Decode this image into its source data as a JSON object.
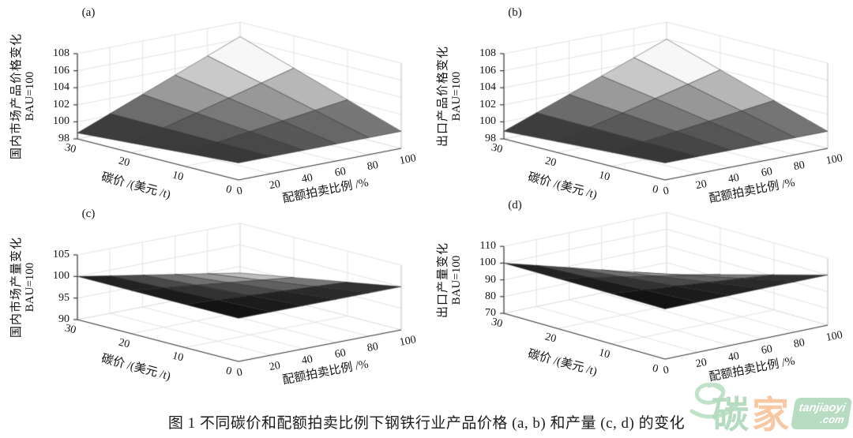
{
  "figure": {
    "caption": "图 1  不同碳价和配额拍卖比例下钢铁行业产品价格 (a, b) 和产量 (c, d) 的变化"
  },
  "watermark": {
    "char_yi": "易",
    "char_tan": "碳",
    "char_jia": "家",
    "badge_line1": "tanjiaoyi",
    "badge_line2": ".com",
    "green": "#b7dcc2",
    "peach": "#f6c9a4",
    "badge_text_color": "#ffffff"
  },
  "chart_data": [
    {
      "panel": "a",
      "type": "surface",
      "title": "(a)",
      "zlabel_line1": "国内市场产品价格变化",
      "zlabel_line2": "BAU=100",
      "xlabel": "配额拍卖比例 /%",
      "ylabel": "碳价 /(美元 /t)",
      "x_auction_ticks": [
        0,
        20,
        40,
        60,
        80,
        100
      ],
      "y_carbon_ticks": [
        30,
        20,
        10,
        0
      ],
      "z_ticks": [
        98,
        100,
        102,
        104,
        106,
        108
      ],
      "zlim": [
        98,
        108
      ],
      "carbon_values": [
        0,
        10,
        20,
        30
      ],
      "auction_values": [
        0,
        20,
        40,
        60,
        80,
        100
      ],
      "z_matrix": [
        [
          100,
          100,
          100,
          100,
          100,
          100
        ],
        [
          99.57,
          100.07,
          100.58,
          101.09,
          101.59,
          102.1
        ],
        [
          99.13,
          100.15,
          101.16,
          102.17,
          103.19,
          104.2
        ],
        [
          98.7,
          100.22,
          101.74,
          103.26,
          104.78,
          106.3
        ]
      ]
    },
    {
      "panel": "b",
      "type": "surface",
      "title": "(b)",
      "zlabel_line1": "出口产品价格变化",
      "zlabel_line2": "BAU=100",
      "xlabel": "配额拍卖比例 /%",
      "ylabel": "碳价 /(美元 /t)",
      "x_auction_ticks": [
        0,
        20,
        40,
        60,
        80,
        100
      ],
      "y_carbon_ticks": [
        30,
        20,
        10,
        0
      ],
      "z_ticks": [
        98,
        100,
        102,
        104,
        106,
        108
      ],
      "zlim": [
        98,
        108
      ],
      "carbon_values": [
        0,
        10,
        20,
        30
      ],
      "auction_values": [
        0,
        20,
        40,
        60,
        80,
        100
      ],
      "z_matrix": [
        [
          100,
          100,
          100,
          100,
          100,
          100
        ],
        [
          99.63,
          100.11,
          100.58,
          101.05,
          101.53,
          102.0
        ],
        [
          99.27,
          100.21,
          101.16,
          102.11,
          103.05,
          104.0
        ],
        [
          98.9,
          100.32,
          101.73,
          103.15,
          104.57,
          106.0
        ]
      ]
    },
    {
      "panel": "c",
      "type": "surface",
      "title": "(c)",
      "zlabel_line1": "国内市场产量变化",
      "zlabel_line2": "BAU=100",
      "xlabel": "配额拍卖比例 /%",
      "ylabel": "碳价 /(美元 /t)",
      "x_auction_ticks": [
        0,
        20,
        40,
        60,
        80,
        100
      ],
      "y_carbon_ticks": [
        30,
        20,
        10,
        0
      ],
      "z_ticks": [
        90,
        95,
        100,
        105
      ],
      "zlim": [
        90,
        105
      ],
      "carbon_values": [
        0,
        10,
        20,
        30
      ],
      "auction_values": [
        0,
        20,
        40,
        60,
        80,
        100
      ],
      "z_matrix": [
        [
          100,
          100,
          100,
          100,
          100,
          100
        ],
        [
          100,
          99.57,
          99.13,
          98.7,
          98.27,
          97.83
        ],
        [
          100,
          99.13,
          98.27,
          97.4,
          96.53,
          95.67
        ],
        [
          100,
          98.7,
          97.4,
          96.1,
          94.8,
          93.5
        ]
      ]
    },
    {
      "panel": "d",
      "type": "surface",
      "title": "(d)",
      "zlabel_line1": "出口产量变化",
      "zlabel_line2": "BAU=100",
      "xlabel": "配额拍卖比例 /%",
      "ylabel": "碳价 /(美元 /t)",
      "x_auction_ticks": [
        0,
        20,
        40,
        60,
        80,
        100
      ],
      "y_carbon_ticks": [
        30,
        20,
        10,
        0
      ],
      "z_ticks": [
        70,
        80,
        90,
        100,
        110
      ],
      "zlim": [
        70,
        110
      ],
      "carbon_values": [
        0,
        10,
        20,
        30
      ],
      "auction_values": [
        0,
        20,
        40,
        60,
        80,
        100
      ],
      "z_matrix": [
        [
          100,
          100,
          100,
          100,
          100,
          100
        ],
        [
          100,
          98.2,
          96.4,
          94.6,
          92.8,
          91.0
        ],
        [
          100,
          96.4,
          92.8,
          89.2,
          85.6,
          82.0
        ],
        [
          100,
          94.6,
          89.2,
          83.8,
          78.4,
          73.0
        ]
      ]
    }
  ]
}
